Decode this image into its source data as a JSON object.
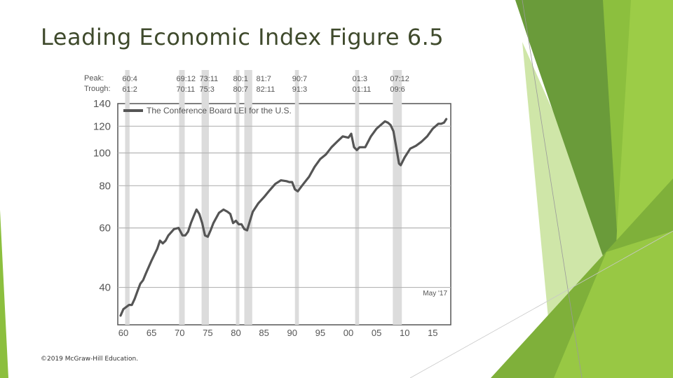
{
  "slide": {
    "title": "Leading Economic Index Figure 6.5",
    "copyright": "©2019 McGraw-Hill Education."
  },
  "theme": {
    "accent_dark": "#5e8f33",
    "accent_mid": "#7fb03a",
    "accent_light": "#9ccc47",
    "accent_pale": "#cfe6a8"
  },
  "chart_data": {
    "type": "line",
    "title": "",
    "xlabel": "",
    "ylabel": "",
    "scale": "log",
    "ylim": [
      31,
      140
    ],
    "xlim": [
      1959,
      2018.2
    ],
    "grid": true,
    "legend_position": "top-left",
    "y_ticks": [
      {
        "value": 140,
        "label": "140"
      },
      {
        "value": 120,
        "label": "120"
      },
      {
        "value": 100,
        "label": "100"
      },
      {
        "value": 80,
        "label": "80"
      },
      {
        "value": 60,
        "label": "60"
      },
      {
        "value": 40,
        "label": "40"
      }
    ],
    "x_ticks": [
      {
        "value": 1960,
        "label": "60"
      },
      {
        "value": 1965,
        "label": "65"
      },
      {
        "value": 1970,
        "label": "70"
      },
      {
        "value": 1975,
        "label": "75"
      },
      {
        "value": 1980,
        "label": "80"
      },
      {
        "value": 1985,
        "label": "85"
      },
      {
        "value": 1990,
        "label": "90"
      },
      {
        "value": 1995,
        "label": "95"
      },
      {
        "value": 2000,
        "label": "00"
      },
      {
        "value": 2005,
        "label": "05"
      },
      {
        "value": 2010,
        "label": "10"
      },
      {
        "value": 2015,
        "label": "15"
      }
    ],
    "peak_label": "Peak:",
    "trough_label": "Trough:",
    "recessions": [
      {
        "peak": "60:4",
        "trough": "61:2",
        "start": 1960.3,
        "end": 1961.1,
        "show_labels": true
      },
      {
        "peak": "69:12",
        "trough": "70:11",
        "start": 1969.9,
        "end": 1970.9,
        "show_labels": true
      },
      {
        "peak": "73:11",
        "trough": "75:3",
        "start": 1973.9,
        "end": 1975.2,
        "show_labels": true
      },
      {
        "peak": "80:1",
        "trough": "80:7",
        "start": 1980.0,
        "end": 1980.5,
        "show_labels": true
      },
      {
        "peak": "81:7",
        "trough": "82:11",
        "start": 1981.5,
        "end": 1982.9,
        "show_labels": true
      },
      {
        "peak": "90:7",
        "trough": "91:3",
        "start": 1990.5,
        "end": 1991.2,
        "show_labels": true
      },
      {
        "peak": "01:3",
        "trough": "01:11",
        "start": 2001.2,
        "end": 2001.9,
        "show_labels": true
      },
      {
        "peak": "07:12",
        "trough": "09:6",
        "start": 2007.9,
        "end": 2009.5,
        "show_labels": true
      }
    ],
    "series": [
      {
        "name": "The Conference Board LEI for the U.S.",
        "x": [
          1959.5,
          1960.0,
          1960.5,
          1961.0,
          1961.5,
          1962.0,
          1962.5,
          1963.0,
          1963.5,
          1964.0,
          1965.0,
          1966.0,
          1966.5,
          1967.0,
          1967.5,
          1968.0,
          1969.0,
          1969.8,
          1970.5,
          1971.0,
          1971.5,
          1972.0,
          1972.5,
          1973.0,
          1973.5,
          1974.0,
          1974.5,
          1975.0,
          1975.5,
          1976.0,
          1977.0,
          1977.8,
          1978.5,
          1979.0,
          1979.5,
          1980.0,
          1980.5,
          1981.0,
          1981.5,
          1982.0,
          1982.5,
          1983.0,
          1984.0,
          1985.0,
          1986.0,
          1987.0,
          1988.0,
          1989.0,
          1989.5,
          1990.0,
          1990.5,
          1991.0,
          1991.5,
          1992.0,
          1993.0,
          1994.0,
          1995.0,
          1996.0,
          1997.0,
          1998.0,
          1999.0,
          2000.0,
          2000.5,
          2001.0,
          2001.5,
          2002.0,
          2003.0,
          2004.0,
          2005.0,
          2006.0,
          2006.5,
          2007.0,
          2007.5,
          2008.0,
          2008.5,
          2009.0,
          2009.3,
          2010.0,
          2011.0,
          2012.0,
          2013.0,
          2014.0,
          2015.0,
          2016.0,
          2016.5,
          2017.0,
          2017.4
        ],
        "values": [
          33,
          34.5,
          35,
          35.5,
          35.5,
          37,
          39,
          41,
          42,
          44,
          48,
          52,
          55,
          54,
          55,
          57,
          59.5,
          60,
          57,
          57,
          58.5,
          62,
          65,
          68,
          66,
          62,
          57,
          56.5,
          59,
          62,
          66.5,
          68,
          67,
          66,
          62,
          63,
          61.5,
          61.5,
          59.5,
          59,
          63,
          67,
          71,
          74,
          77.5,
          81,
          83,
          82.5,
          82,
          82,
          78,
          77,
          79,
          81,
          85,
          91,
          96,
          99,
          104,
          108,
          112,
          111,
          114,
          104,
          102,
          104,
          104,
          112,
          118,
          122,
          124,
          123,
          121,
          116,
          104,
          93,
          92,
          97,
          103,
          105,
          108,
          112,
          118,
          122,
          122,
          123,
          126
        ]
      }
    ],
    "annotations": [
      {
        "text": "May '17",
        "position": "bottom-right"
      }
    ]
  }
}
